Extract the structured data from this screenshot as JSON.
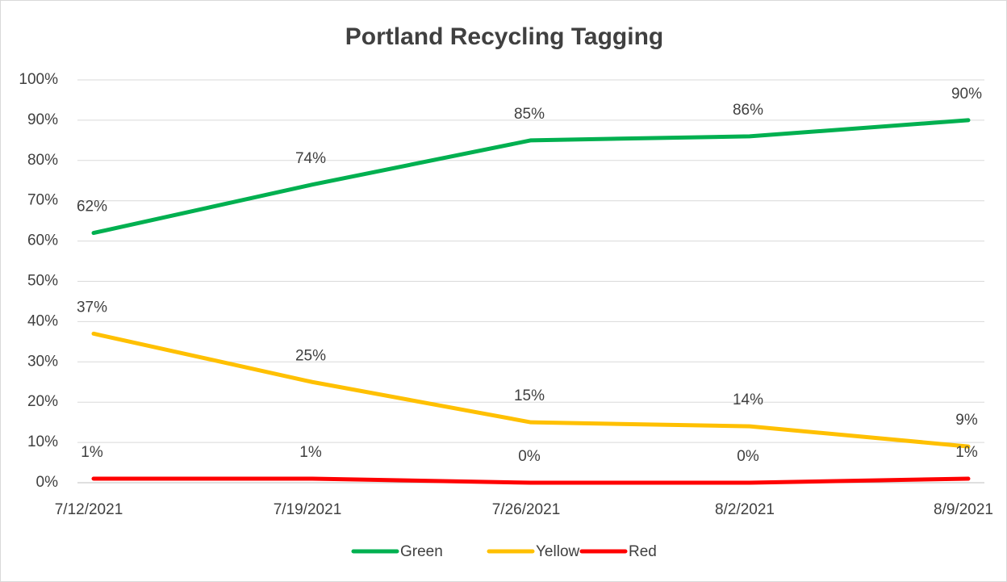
{
  "chart_data": {
    "type": "line",
    "title": "Portland Recycling Tagging",
    "categories": [
      "7/12/2021",
      "7/19/2021",
      "7/26/2021",
      "8/2/2021",
      "8/9/2021"
    ],
    "series": [
      {
        "name": "Green",
        "color": "#00b050",
        "values": [
          62,
          74,
          85,
          86,
          90
        ],
        "value_labels": [
          "62%",
          "74%",
          "85%",
          "86%",
          "90%"
        ]
      },
      {
        "name": "Yellow",
        "color": "#ffc000",
        "values": [
          37,
          25,
          15,
          14,
          9
        ],
        "value_labels": [
          "37%",
          "25%",
          "15%",
          "14%",
          "9%"
        ]
      },
      {
        "name": "Red",
        "color": "#ff0000",
        "values": [
          1,
          1,
          0,
          0,
          1
        ],
        "value_labels": [
          "1%",
          "1%",
          "0%",
          "0%",
          "1%"
        ]
      }
    ],
    "ylim": [
      0,
      100
    ],
    "yticks": [
      {
        "value": 0,
        "label": "0%"
      },
      {
        "value": 10,
        "label": "10%"
      },
      {
        "value": 20,
        "label": "20%"
      },
      {
        "value": 30,
        "label": "30%"
      },
      {
        "value": 40,
        "label": "40%"
      },
      {
        "value": 50,
        "label": "50%"
      },
      {
        "value": 60,
        "label": "60%"
      },
      {
        "value": 70,
        "label": "70%"
      },
      {
        "value": 80,
        "label": "80%"
      },
      {
        "value": 90,
        "label": "90%"
      },
      {
        "value": 100,
        "label": "100%"
      }
    ],
    "grid": true,
    "legend": "bottom"
  }
}
